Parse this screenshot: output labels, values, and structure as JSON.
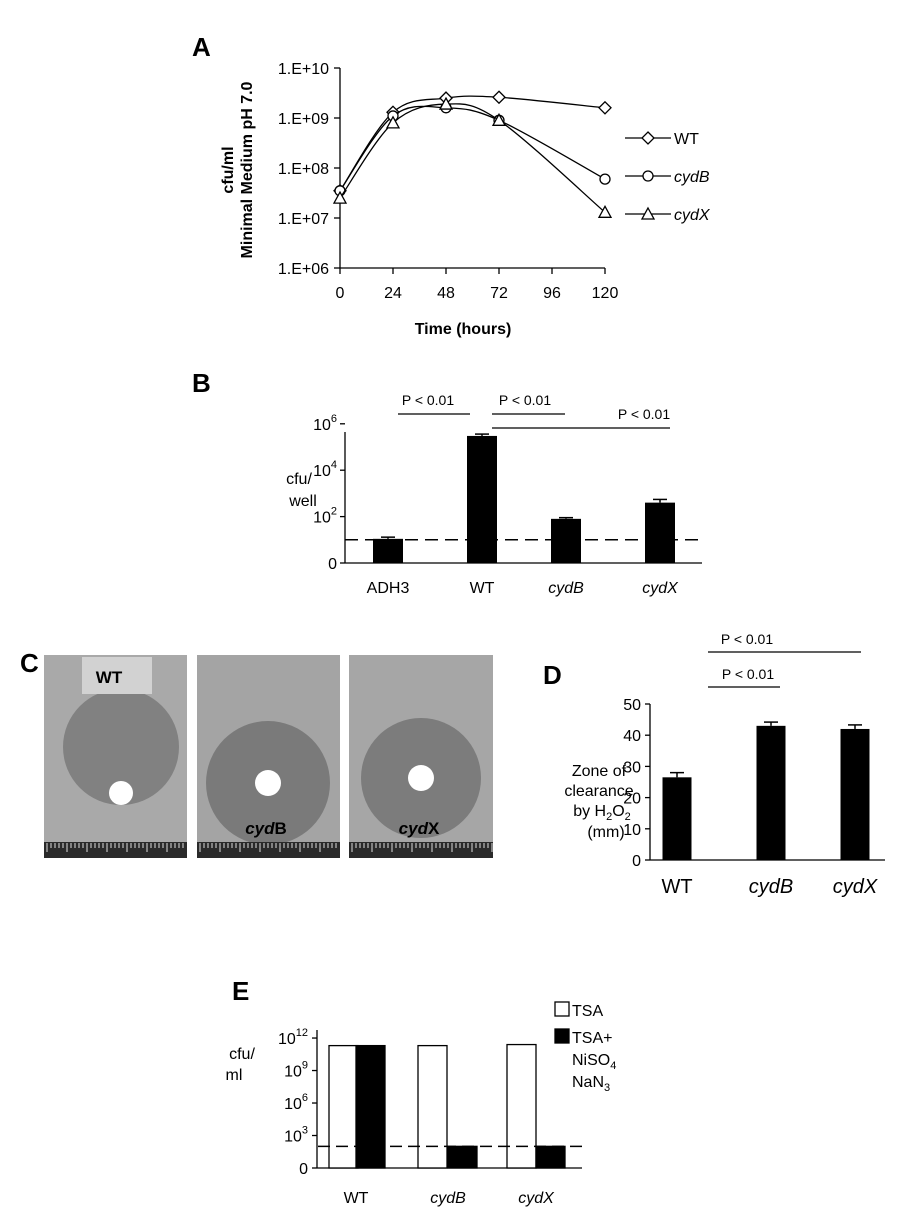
{
  "chart_data": [
    {
      "panel": "A",
      "type": "line",
      "y_scale": "log",
      "ylim": [
        1000000,
        10000000000
      ],
      "xlim": [
        0,
        120
      ],
      "x_ticks": [
        "0",
        "24",
        "48",
        "72",
        "96",
        "120"
      ],
      "y_ticks": [
        "1.E+06",
        "1.E+07",
        "1.E+08",
        "1.E+09",
        "1.E+10"
      ],
      "xlabel": "Time (hours)",
      "ylabel": [
        "cfu/ml",
        "Minimal Medium pH 7.0"
      ],
      "legend_position": "right",
      "series": [
        {
          "name": "WT",
          "marker": "diamond",
          "x": [
            0,
            24,
            48,
            72,
            120
          ],
          "y": [
            35000000,
            1300000000,
            2500000000,
            2600000000,
            1600000000
          ]
        },
        {
          "name": "cydB",
          "marker": "circle",
          "x": [
            0,
            24,
            48,
            72,
            120
          ],
          "y": [
            35000000,
            1100000000,
            1600000000,
            900000000,
            60000000
          ]
        },
        {
          "name": "cydX",
          "marker": "triangle",
          "x": [
            0,
            24,
            48,
            72,
            120
          ],
          "y": [
            25000000,
            800000000,
            1900000000,
            900000000,
            13000000
          ]
        }
      ]
    },
    {
      "panel": "B",
      "type": "bar",
      "y_scale": "log",
      "ylabel": [
        "cfu/",
        "well"
      ],
      "y_ticks": [
        {
          "base": "0",
          "exp": ""
        },
        {
          "base": "10",
          "exp": "2"
        },
        {
          "base": "10",
          "exp": "4"
        },
        {
          "base": "10",
          "exp": "6"
        }
      ],
      "categories": [
        "ADH3",
        "WT",
        "cydB",
        "cydX"
      ],
      "italic_categories": [
        false,
        false,
        true,
        true
      ],
      "values": [
        11,
        300000,
        80,
        400
      ],
      "errors": [
        2,
        60000,
        10,
        150
      ],
      "detection_limit": 10,
      "significance": [
        {
          "text": "P < 0.01",
          "from": "ADH3",
          "to": "WT"
        },
        {
          "text": "P < 0.01",
          "from": "WT",
          "to": "cydB"
        },
        {
          "text": "P < 0.01",
          "from": "WT",
          "to": "cydX"
        }
      ]
    },
    {
      "panel": "D",
      "type": "bar",
      "ylabel": [
        "Zone of",
        "clearance",
        "by H2O2",
        "(mm)"
      ],
      "ylim": [
        0,
        50
      ],
      "y_ticks": [
        "0",
        "10",
        "20",
        "30",
        "40",
        "50"
      ],
      "categories": [
        "WT",
        "cydB",
        "cydX"
      ],
      "italic_categories": [
        false,
        true,
        true
      ],
      "values": [
        26.5,
        43,
        42
      ],
      "errors": [
        1.5,
        1.2,
        1.3
      ],
      "significance": [
        {
          "text": "P < 0.01",
          "from": "WT",
          "to": "cydB"
        },
        {
          "text": "P < 0.01",
          "from": "WT",
          "to": "cydX"
        }
      ]
    },
    {
      "panel": "E",
      "type": "bar",
      "y_scale": "log",
      "ylabel": [
        "cfu/",
        "ml"
      ],
      "y_ticks": [
        {
          "base": "0",
          "exp": ""
        },
        {
          "base": "10",
          "exp": "3"
        },
        {
          "base": "10",
          "exp": "6"
        },
        {
          "base": "10",
          "exp": "9"
        },
        {
          "base": "10",
          "exp": "12"
        }
      ],
      "categories": [
        "WT",
        "cydB",
        "cydX"
      ],
      "italic_categories": [
        false,
        true,
        true
      ],
      "detection_limit": 100,
      "legend_position": "top-right",
      "series": [
        {
          "name": "TSA",
          "fill": "#ffffff",
          "values": [
            200000000000,
            200000000000,
            250000000000
          ]
        },
        {
          "name": "TSA+ NiSO4 NaN3",
          "fill": "#000000",
          "values": [
            200000000000,
            100,
            100
          ]
        }
      ]
    }
  ],
  "figure": {
    "panel_letters": [
      "A",
      "B",
      "C",
      "D",
      "E"
    ],
    "panel_c": {
      "photo_labels": [
        "WT",
        "cydB",
        "cydX"
      ],
      "photo_label_parts": [
        {
          "italic": "",
          "plain": "WT"
        },
        {
          "italic": "cyd",
          "plain": "B"
        },
        {
          "italic": "cyd",
          "plain": "X"
        }
      ]
    },
    "d_ylabel_parts": {
      "line1": "Zone of",
      "line2": "clearance",
      "line3_pre": "by H",
      "sub": "2",
      "mid": "O",
      "line4": "(mm)"
    },
    "e_legend_parts": {
      "open": "TSA",
      "filled_line1": "TSA+",
      "filled_line2_pre": "NiSO",
      "filled_line2_sub": "4",
      "filled_line3_pre": "NaN",
      "filled_line3_sub": "3"
    }
  }
}
